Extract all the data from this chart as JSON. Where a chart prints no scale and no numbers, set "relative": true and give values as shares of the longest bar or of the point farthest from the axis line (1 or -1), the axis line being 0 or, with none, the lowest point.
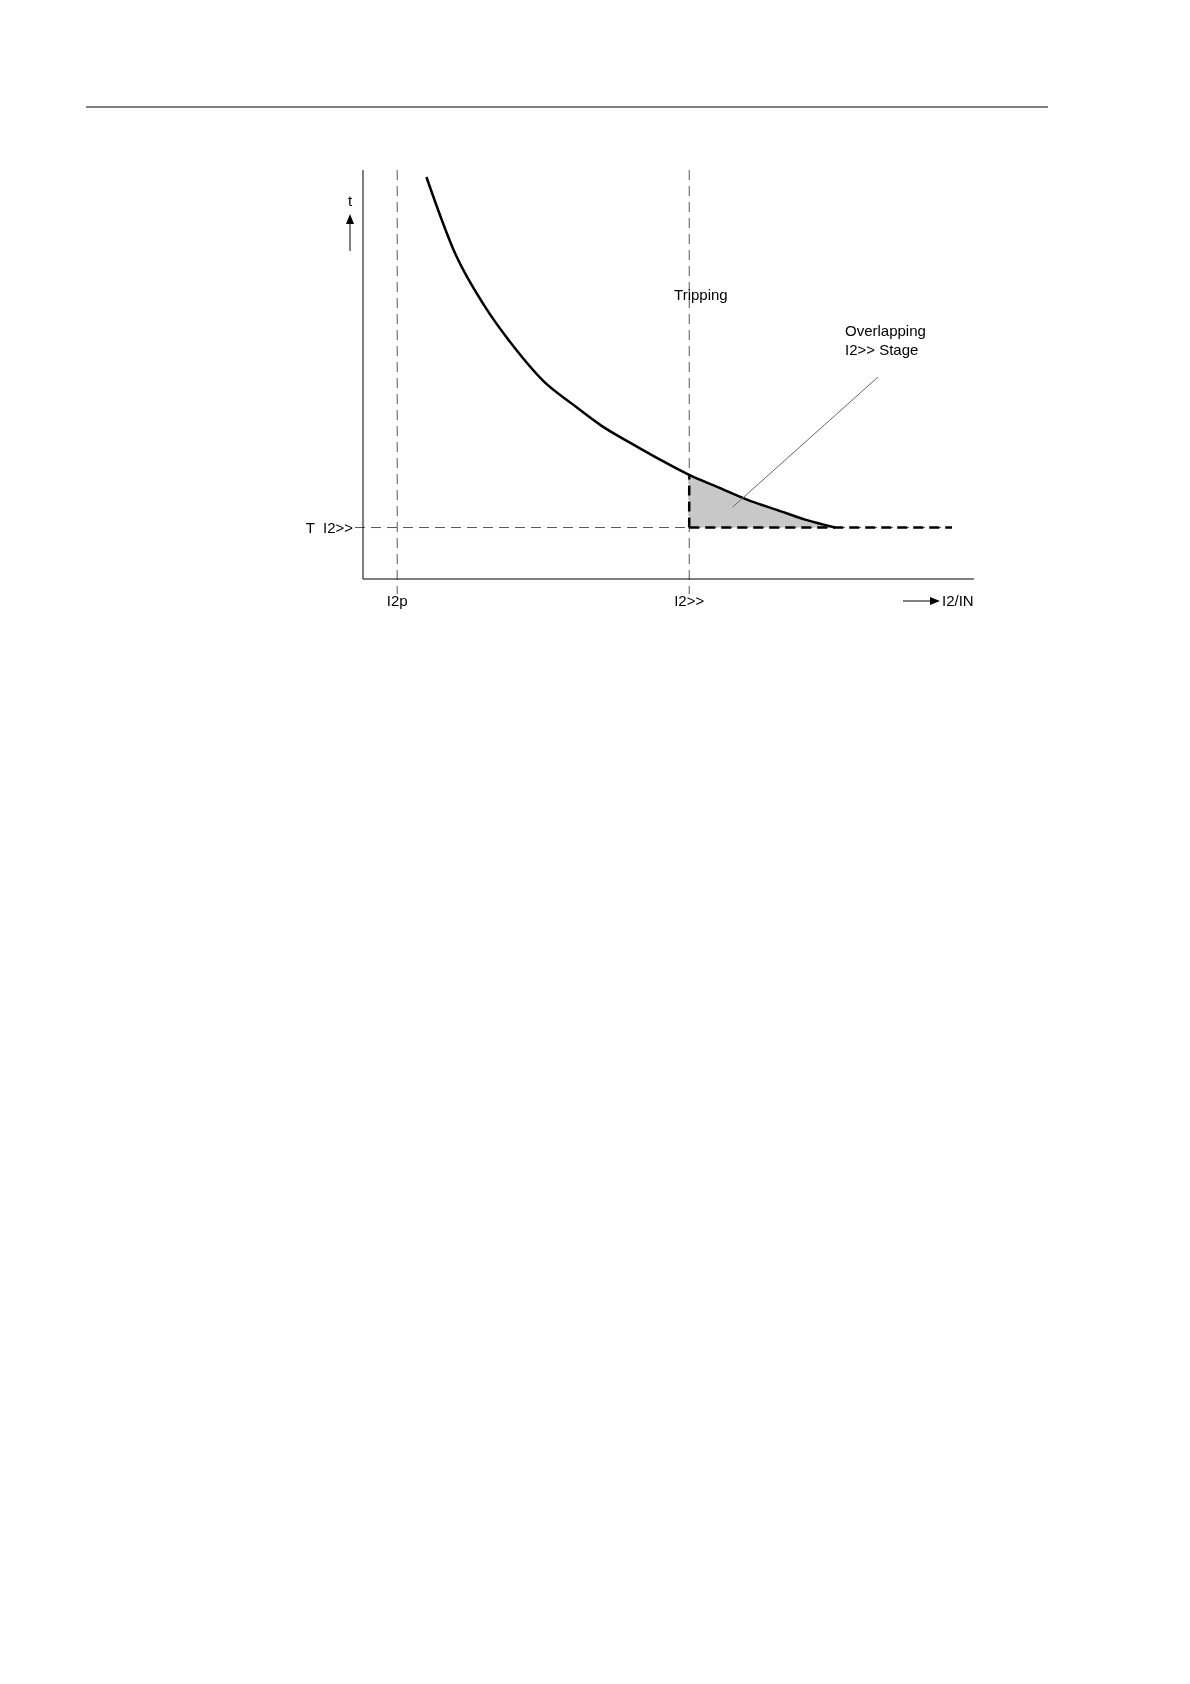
{
  "chart_data": {
    "type": "line",
    "relative": true,
    "xlabel": "I2/IN",
    "ylabel": "t",
    "marker": "none",
    "grid": "x",
    "categories": [
      "I2p",
      null,
      null,
      null,
      null,
      null,
      null,
      null,
      null,
      null,
      "I2>>",
      null,
      null,
      null,
      null,
      null,
      null,
      null,
      null,
      null
    ],
    "series": [
      {
        "color": "#000000",
        "line_style": "solid",
        "values": [
          null,
          1,
          0.807,
          0.678,
          0.577,
          0.493,
          0.435,
          0.381,
          0.338,
          0.297,
          0.259,
          0.228,
          0.197,
          0.172,
          0.147,
          0.128,
          null,
          null,
          null,
          null
        ],
        "lower": [
          null,
          null,
          null,
          null,
          null,
          null,
          null,
          null,
          null,
          null,
          0.128,
          0.128,
          0.128,
          0.128,
          0.128,
          0.128,
          null,
          null,
          null,
          null
        ],
        "upper": [
          null,
          null,
          null,
          null,
          null,
          null,
          null,
          null,
          null,
          null,
          0.259,
          0.228,
          0.197,
          0.172,
          0.147,
          0.128,
          null,
          null,
          null,
          null
        ]
      },
      {
        "color": "#000000",
        "line_style": "dashed",
        "values": [
          null,
          null,
          null,
          null,
          null,
          null,
          null,
          null,
          null,
          null,
          0.128,
          0.128,
          0.128,
          0.128,
          0.128,
          0.128,
          0.128,
          0.128,
          0.128,
          0.128
        ]
      }
    ],
    "ref_lines": [
      {
        "axis": "y",
        "value": 0.128,
        "label": "T  I2>>",
        "color": "#555555",
        "line_style": "dashed"
      }
    ],
    "annotations": [
      "Tripping",
      "Overlapping\nI2>> Stage"
    ]
  }
}
